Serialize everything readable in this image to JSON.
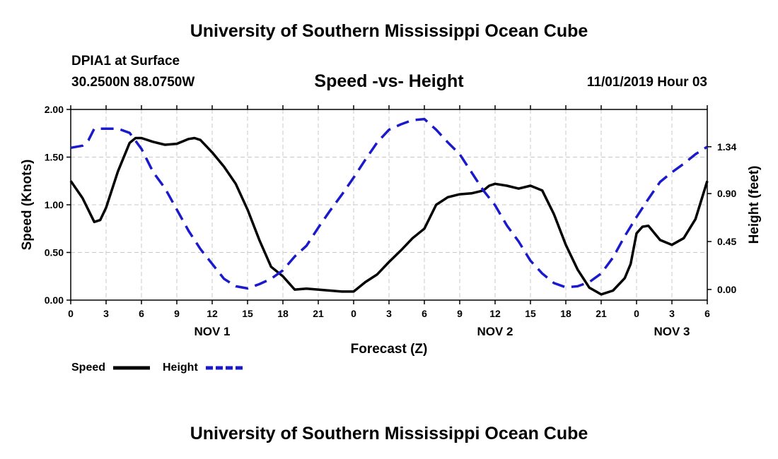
{
  "header": {
    "title": "University of Southern Mississippi Ocean Cube",
    "station": "DPIA1 at Surface",
    "coords": "30.2500N 88.0750W",
    "subtitle": "Speed -vs- Height",
    "datetime": "11/01/2019 Hour 03"
  },
  "footer": {
    "title": "University of Southern Mississippi Ocean Cube"
  },
  "chart_data": {
    "type": "line",
    "title": "Speed -vs- Height",
    "xlabel": "Forecast (Z)",
    "ylabel_left": "Speed (Knots)",
    "ylabel_right": "Height (feet)",
    "x_range": [
      0,
      54
    ],
    "x_ticks": [
      0,
      3,
      6,
      9,
      12,
      15,
      18,
      21,
      24,
      27,
      30,
      33,
      36,
      39,
      42,
      45,
      48,
      51,
      54
    ],
    "x_tick_labels": [
      "0",
      "3",
      "6",
      "9",
      "12",
      "15",
      "18",
      "21",
      "0",
      "3",
      "6",
      "9",
      "12",
      "15",
      "18",
      "21",
      "0",
      "3",
      "6"
    ],
    "day_labels": [
      {
        "x": 12,
        "label": "NOV 1"
      },
      {
        "x": 36,
        "label": "NOV 2"
      },
      {
        "x": 51,
        "label": "NOV 3"
      }
    ],
    "y_left_range": [
      0,
      2
    ],
    "y_left_ticks": [
      0,
      0.5,
      1.0,
      1.5,
      2.0
    ],
    "y_left_tick_labels": [
      "0.00",
      "0.50",
      "1.00",
      "1.50",
      "2.00"
    ],
    "y_right_range": [
      -0.1,
      1.69
    ],
    "y_right_ticks": [
      0,
      0.45,
      0.9,
      1.34
    ],
    "y_right_tick_labels": [
      "0.00",
      "0.45",
      "0.90",
      "1.34"
    ],
    "grid": true,
    "series": [
      {
        "name": "Speed",
        "axis": "left",
        "color": "#000000",
        "dash": "solid",
        "x": [
          0,
          1,
          2,
          2.5,
          3,
          4,
          5,
          5.5,
          6,
          7,
          8,
          9,
          10,
          10.5,
          11,
          12,
          13,
          14,
          15,
          16,
          17,
          18,
          19,
          20,
          21,
          22,
          23,
          24,
          25,
          26,
          27,
          28,
          29,
          30,
          31,
          32,
          33,
          34,
          35,
          35.5,
          36,
          37,
          38,
          39,
          40,
          41,
          42,
          43,
          44,
          45,
          46,
          47,
          47.5,
          48,
          48.5,
          49,
          50,
          51,
          52,
          53,
          54
        ],
        "values": [
          1.25,
          1.07,
          0.82,
          0.84,
          0.97,
          1.35,
          1.65,
          1.7,
          1.7,
          1.66,
          1.63,
          1.64,
          1.69,
          1.7,
          1.68,
          1.55,
          1.4,
          1.22,
          0.95,
          0.63,
          0.35,
          0.25,
          0.11,
          0.12,
          0.11,
          0.1,
          0.09,
          0.09,
          0.19,
          0.27,
          0.4,
          0.52,
          0.65,
          0.75,
          1.0,
          1.08,
          1.11,
          1.12,
          1.15,
          1.2,
          1.22,
          1.2,
          1.17,
          1.2,
          1.15,
          0.9,
          0.58,
          0.32,
          0.13,
          0.06,
          0.1,
          0.23,
          0.38,
          0.7,
          0.77,
          0.78,
          0.63,
          0.58,
          0.65,
          0.85,
          1.25
        ]
      },
      {
        "name": "Height",
        "axis": "right",
        "color": "#1a1acc",
        "dash": "dashed",
        "x": [
          0,
          1,
          1.5,
          2,
          3,
          4,
          5,
          6,
          7,
          8,
          9,
          10,
          11,
          12,
          13,
          14,
          15,
          16,
          17,
          18,
          19,
          20,
          21,
          22,
          23,
          24,
          25,
          26,
          27,
          28,
          29,
          30,
          31,
          32,
          33,
          34,
          35,
          36,
          37,
          38,
          39,
          40,
          41,
          42,
          43,
          44,
          45,
          46,
          47,
          48,
          49,
          50,
          51,
          52,
          53,
          54
        ],
        "values": [
          1.33,
          1.35,
          1.4,
          1.51,
          1.51,
          1.51,
          1.47,
          1.32,
          1.1,
          0.95,
          0.75,
          0.55,
          0.38,
          0.24,
          0.1,
          0.03,
          0.01,
          0.05,
          0.1,
          0.18,
          0.31,
          0.41,
          0.58,
          0.74,
          0.89,
          1.05,
          1.22,
          1.38,
          1.5,
          1.55,
          1.59,
          1.6,
          1.5,
          1.38,
          1.27,
          1.1,
          0.93,
          0.79,
          0.6,
          0.45,
          0.27,
          0.15,
          0.06,
          0.02,
          0.03,
          0.07,
          0.15,
          0.3,
          0.5,
          0.68,
          0.85,
          1.01,
          1.1,
          1.18,
          1.27,
          1.34
        ]
      }
    ],
    "legend": {
      "position": "bottom-left",
      "entries": [
        "Speed",
        "Height"
      ]
    }
  }
}
